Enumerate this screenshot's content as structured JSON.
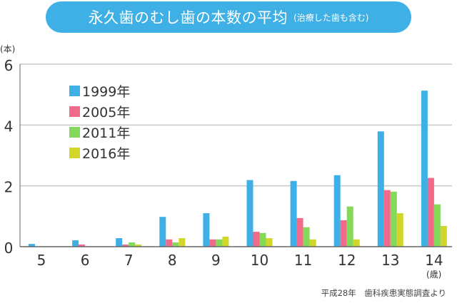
{
  "chart_data": {
    "type": "bar",
    "title": "永久歯のむし歯の本数の平均",
    "subtitle": "(治療した歯も含む)",
    "ylabel": "(本)",
    "xlabel": "(歳)",
    "ylim": [
      0,
      6
    ],
    "yticks": [
      0,
      2,
      4,
      6
    ],
    "grid": true,
    "legend_position": "top-left",
    "categories": [
      "5",
      "6",
      "7",
      "8",
      "9",
      "10",
      "11",
      "12",
      "13",
      "14"
    ],
    "series": [
      {
        "name": "1999年",
        "color": "#3fb0e6",
        "values": [
          0.09,
          0.21,
          0.28,
          0.98,
          1.1,
          2.19,
          2.16,
          2.35,
          3.79,
          5.13
        ]
      },
      {
        "name": "2005年",
        "color": "#f26a8a",
        "values": [
          0,
          0.07,
          0.07,
          0.24,
          0.24,
          0.49,
          0.94,
          0.87,
          1.86,
          2.26
        ]
      },
      {
        "name": "2011年",
        "color": "#84d85a",
        "values": [
          0,
          0,
          0.14,
          0.14,
          0.24,
          0.45,
          0.64,
          1.32,
          1.81,
          1.39
        ]
      },
      {
        "name": "2016年",
        "color": "#d2d629",
        "values": [
          0,
          0,
          0.07,
          0.28,
          0.33,
          0.28,
          0.24,
          0.24,
          1.1,
          0.68
        ]
      }
    ],
    "source": "平成28年　歯科疾患実態調査より"
  }
}
